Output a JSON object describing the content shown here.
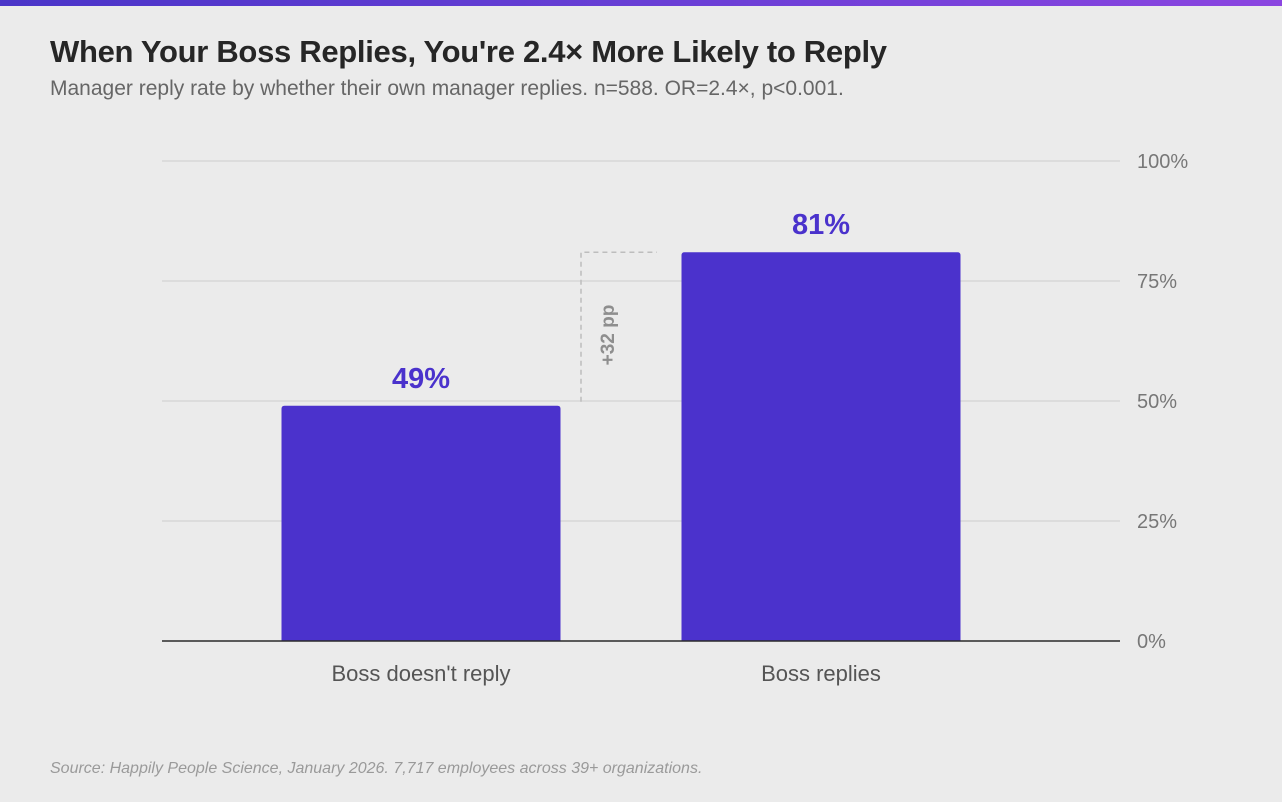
{
  "chart_data": {
    "type": "bar",
    "title": "When Your Boss Replies, You're 2.4× More Likely to Reply",
    "subtitle": "Manager reply rate by whether their own manager replies. n=588. OR=2.4×, p<0.001.",
    "categories": [
      "Boss doesn't reply",
      "Boss replies"
    ],
    "values": [
      49,
      81
    ],
    "value_labels": [
      "49%",
      "81%"
    ],
    "ylim": [
      0,
      100
    ],
    "y_ticks": [
      0,
      25,
      50,
      75,
      100
    ],
    "y_tick_labels": [
      "0%",
      "25%",
      "50%",
      "75%",
      "100%"
    ],
    "y_axis_side": "right",
    "grid": true,
    "bar_color": "#4b32cc",
    "annotation": {
      "text": "+32 pp",
      "from_value": 49,
      "to_value": 81
    },
    "source": "Source: Happily People Science, January 2026. 7,717 employees across 39+ organizations."
  },
  "colors": {
    "accent_bar_start": "#4a35c8",
    "accent_bar_end": "#8b45e0",
    "background": "#ebebeb",
    "value_label": "#4a32cc"
  }
}
